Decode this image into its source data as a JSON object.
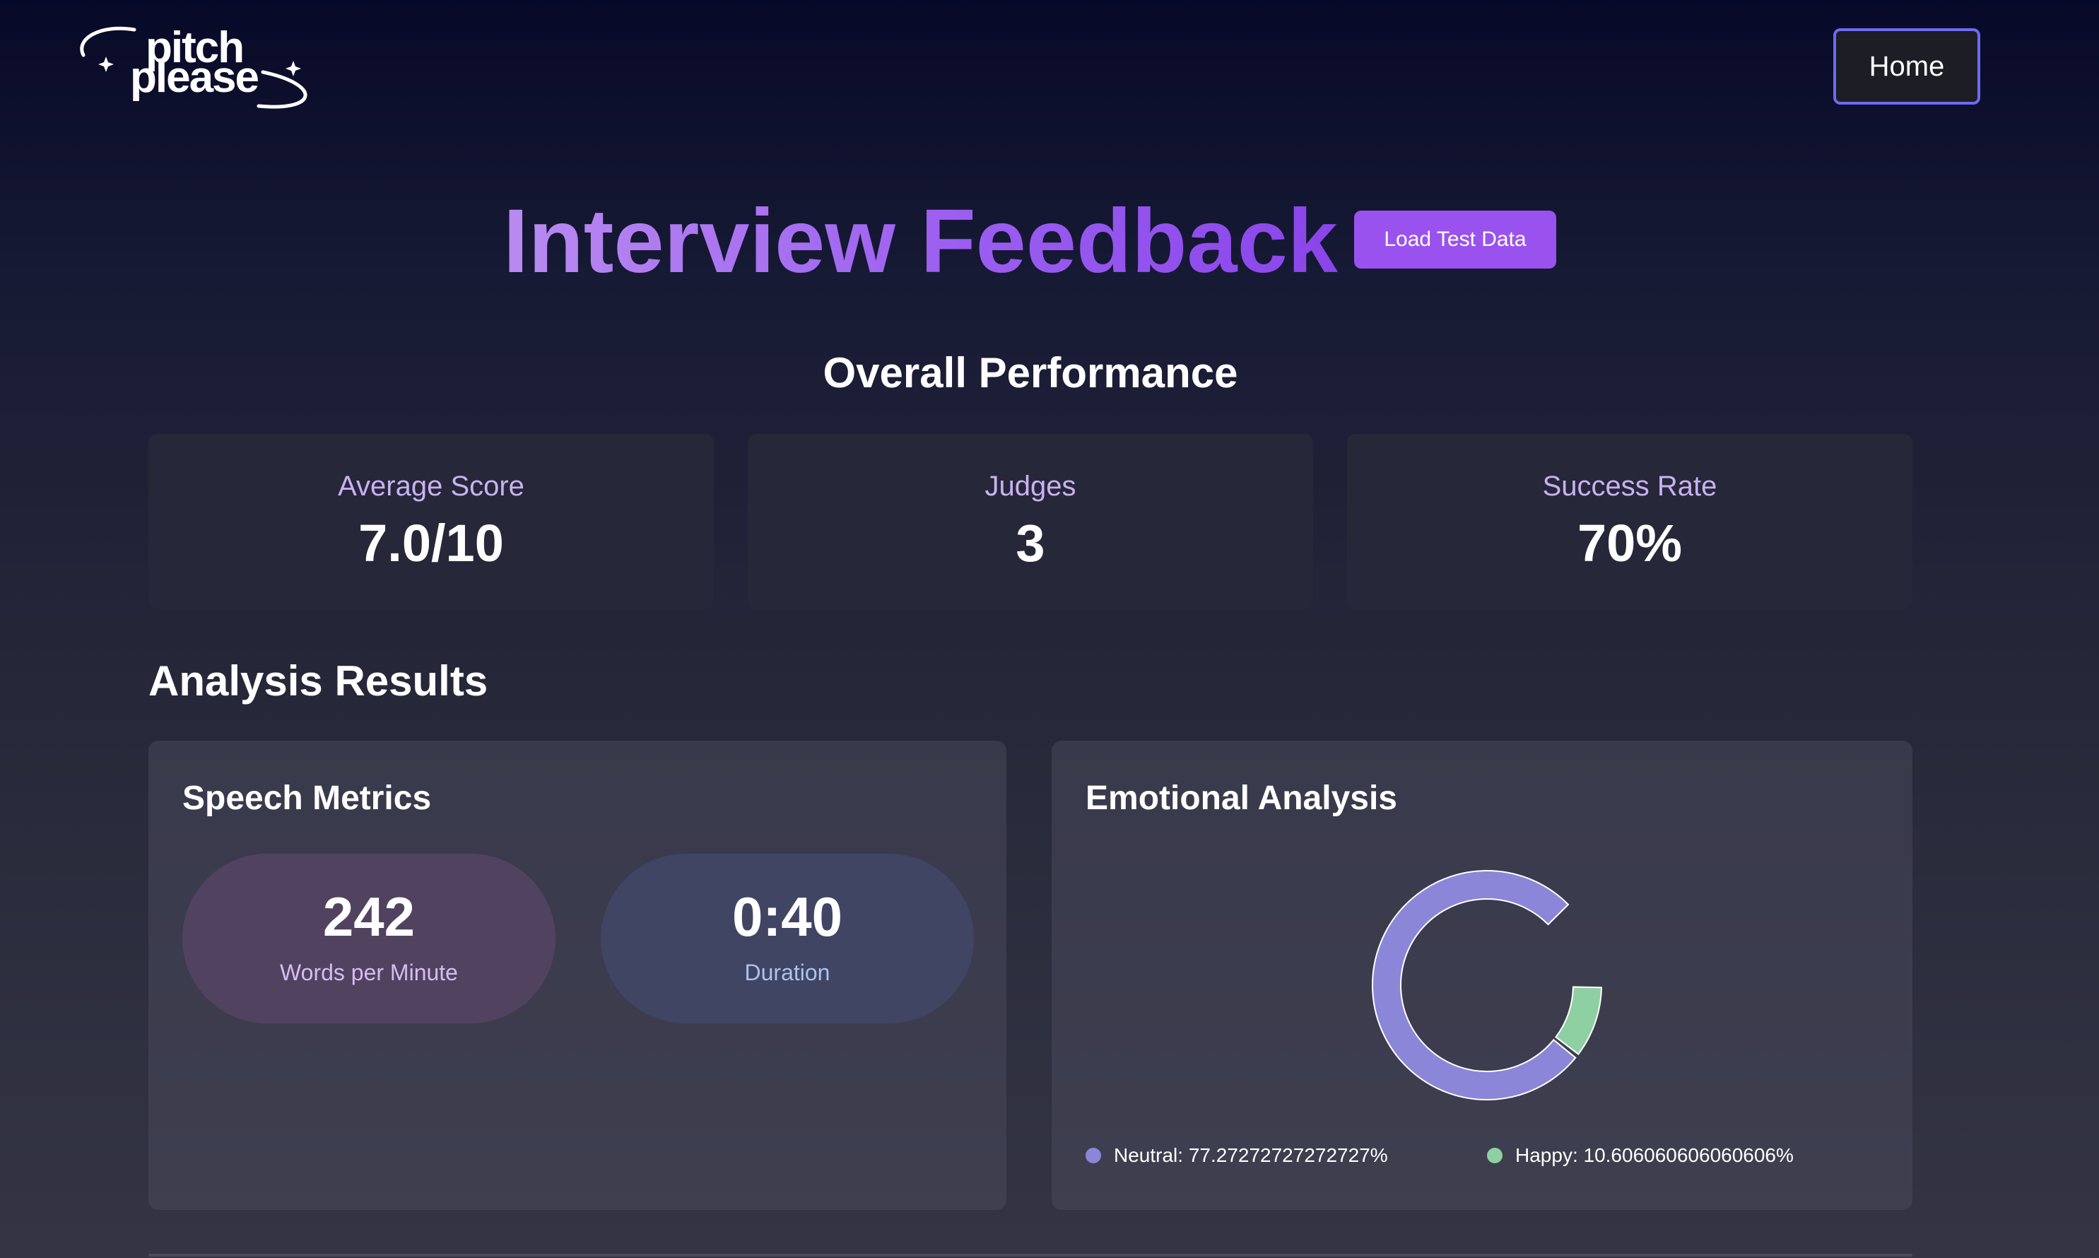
{
  "logo": {
    "line1": "pitch",
    "line2": "please"
  },
  "nav": {
    "home_label": "Home"
  },
  "header": {
    "title": "Interview Feedback",
    "load_button": "Load Test Data"
  },
  "overall": {
    "heading": "Overall Performance",
    "stats": [
      {
        "label": "Average Score",
        "value": "7.0/10"
      },
      {
        "label": "Judges",
        "value": "3"
      },
      {
        "label": "Success Rate",
        "value": "70%"
      }
    ]
  },
  "analysis": {
    "heading": "Analysis Results",
    "speech": {
      "title": "Speech Metrics",
      "metrics": [
        {
          "value": "242",
          "label": "Words per Minute"
        },
        {
          "value": "0:40",
          "label": "Duration"
        }
      ]
    },
    "emotion": {
      "title": "Emotional Analysis",
      "legend": [
        {
          "label": "Neutral: 77.27272727272727%",
          "color": "#8b86d8"
        },
        {
          "label": "Happy: 10.606060606060606%",
          "color": "#8fd0a2"
        }
      ]
    }
  },
  "chart_data": {
    "type": "pie",
    "categories": [
      "Neutral",
      "Happy"
    ],
    "values": [
      77.27272727272727,
      10.606060606060606
    ],
    "colors": [
      "#8b86d8",
      "#8fd0a2"
    ],
    "title": "Emotional Analysis"
  },
  "colors": {
    "accent": "#9a52ef",
    "home_border": "#6b6bf2",
    "stat_label": "#c9b1f2"
  }
}
